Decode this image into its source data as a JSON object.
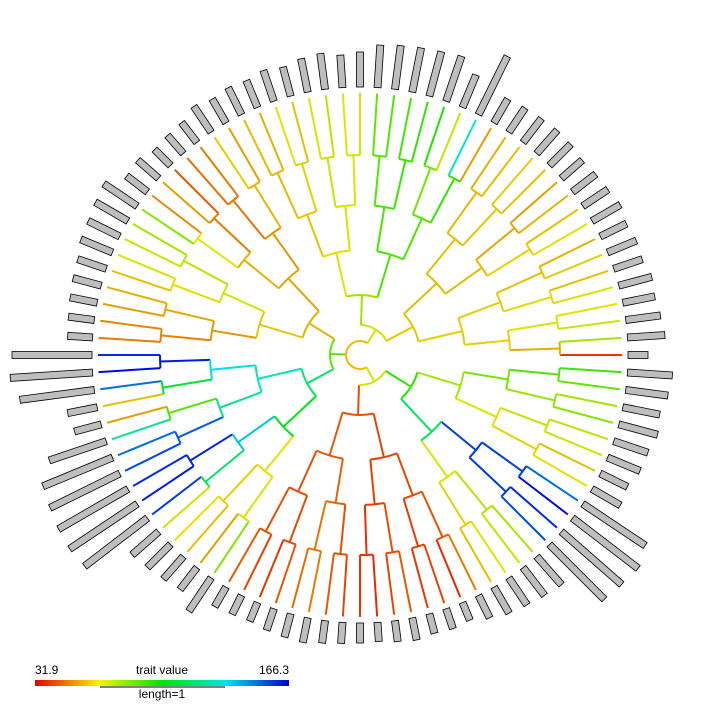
{
  "chart_data": {
    "type": "phylogeny-fan",
    "tips": {
      "values": [
        40,
        75,
        70,
        65,
        68,
        60,
        62,
        58,
        65,
        60,
        58,
        55,
        60,
        62,
        60,
        58,
        55,
        130,
        70,
        95,
        92,
        90,
        88,
        85,
        70,
        65,
        72,
        68,
        60,
        65,
        58,
        60,
        55,
        62,
        50,
        48,
        45,
        55,
        52,
        80,
        75,
        70,
        68,
        60,
        58,
        55,
        52,
        50,
        160,
        165,
        150,
        60,
        55,
        120,
        150,
        155,
        160,
        162,
        158,
        70,
        65,
        60,
        55,
        80,
        45,
        42,
        40,
        45,
        48,
        50,
        45,
        42,
        40,
        38,
        42,
        45,
        40,
        42,
        38,
        50,
        60,
        65,
        70,
        75,
        155,
        160,
        165,
        150,
        65,
        60,
        70,
        72,
        80,
        75,
        85,
        90
      ]
    },
    "color_scale": {
      "min": 31.9,
      "max": 166.3,
      "label": "trait value"
    },
    "scale_bar_label": "length=1"
  }
}
